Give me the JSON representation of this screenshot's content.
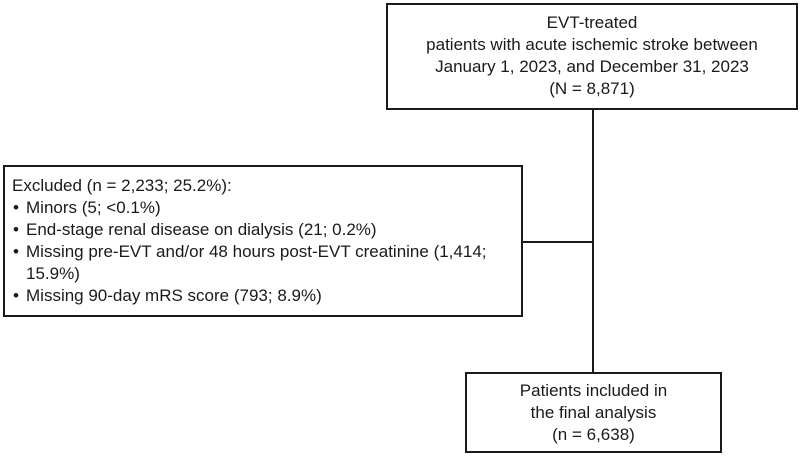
{
  "flowchart": {
    "top_box": {
      "lines": {
        "0": "EVT-treated",
        "1": "patients with acute ischemic stroke between",
        "2": "January 1, 2023, and December 31, 2023",
        "3": "(N = 8,871)"
      }
    },
    "excluded_box": {
      "title": "Excluded (n = 2,233; 25.2%):",
      "bullet_char": "•",
      "items": {
        "0": "Minors (5; <0.1%)",
        "1": "End-stage renal disease on dialysis (21; 0.2%)",
        "2": "Missing pre-EVT and/or 48 hours post-EVT creatinine (1,414; 15.9%)",
        "3": "Missing 90-day mRS score (793; 8.9%)"
      }
    },
    "final_box": {
      "lines": {
        "0": "Patients included in",
        "1": "the final analysis",
        "2": "(n = 6,638)"
      }
    },
    "colors": {
      "line": "#1a1a1a",
      "text": "#1a1a1a",
      "background": "#ffffff"
    }
  }
}
